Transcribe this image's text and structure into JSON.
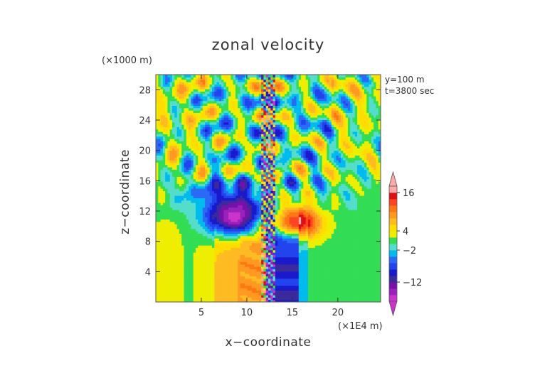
{
  "chart_data": {
    "type": "heatmap",
    "title": "zonal velocity",
    "xlabel": "x−coordinate",
    "ylabel": "z−coordinate",
    "x_unit": "(×1E4 m)",
    "y_unit": "(×1000 m)",
    "annotations": [
      "y=100  m",
      "t=3800 sec"
    ],
    "xlim": [
      0,
      24.7
    ],
    "ylim": [
      0,
      30
    ],
    "x_ticks": [
      5,
      10,
      15,
      20
    ],
    "x_tick_labels": [
      "5",
      "10",
      "15",
      "20"
    ],
    "y_ticks": [
      4,
      8,
      12,
      16,
      20,
      24,
      28
    ],
    "y_tick_labels": [
      "4",
      "8",
      "12",
      "16",
      "20",
      "24",
      "28"
    ],
    "colorbar": {
      "levels": [
        -18,
        -16,
        -14,
        -12,
        -10,
        -8,
        -6,
        -4,
        -2,
        0,
        2,
        4,
        6,
        8,
        10,
        12,
        14,
        16,
        18
      ],
      "colors": [
        "#cc33cc",
        "#9922bb",
        "#7711aa",
        "#3a2a9c",
        "#1a1acc",
        "#2244ee",
        "#2a6af5",
        "#00bbee",
        "#55ddcc",
        "#33dd55",
        "#eeee00",
        "#ffdd00",
        "#ffbb22",
        "#ff9922",
        "#ff7711",
        "#ff4422",
        "#dd1111",
        "#ffaaaa"
      ],
      "tick_labels": [
        {
          "value": 16,
          "label": "16"
        },
        {
          "value": 4,
          "label": "4"
        },
        {
          "value": -2,
          "label": "−2"
        },
        {
          "value": -12,
          "label": "−12"
        }
      ],
      "extend": "both"
    },
    "field_description": {
      "lower_region_columns": [
        {
          "x_range": [
            0,
            7
          ],
          "level": "yellow"
        },
        {
          "x_range": [
            7,
            9.5
          ],
          "level": "orange"
        },
        {
          "x_range": [
            9.5,
            12.5
          ],
          "level": "red-orange"
        },
        {
          "x_range": [
            12.5,
            15.5
          ],
          "level": "blue"
        },
        {
          "x_range": [
            15.5,
            16.5
          ],
          "level": "cyan"
        },
        {
          "x_range": [
            16.5,
            24.7
          ],
          "level": "green"
        }
      ],
      "jet_core_negative": {
        "x": 8.5,
        "z": 11.0,
        "value_approx": -16
      },
      "jet_core_positive": {
        "x": 15.0,
        "z": 11.0,
        "value_approx": 16
      }
    }
  }
}
